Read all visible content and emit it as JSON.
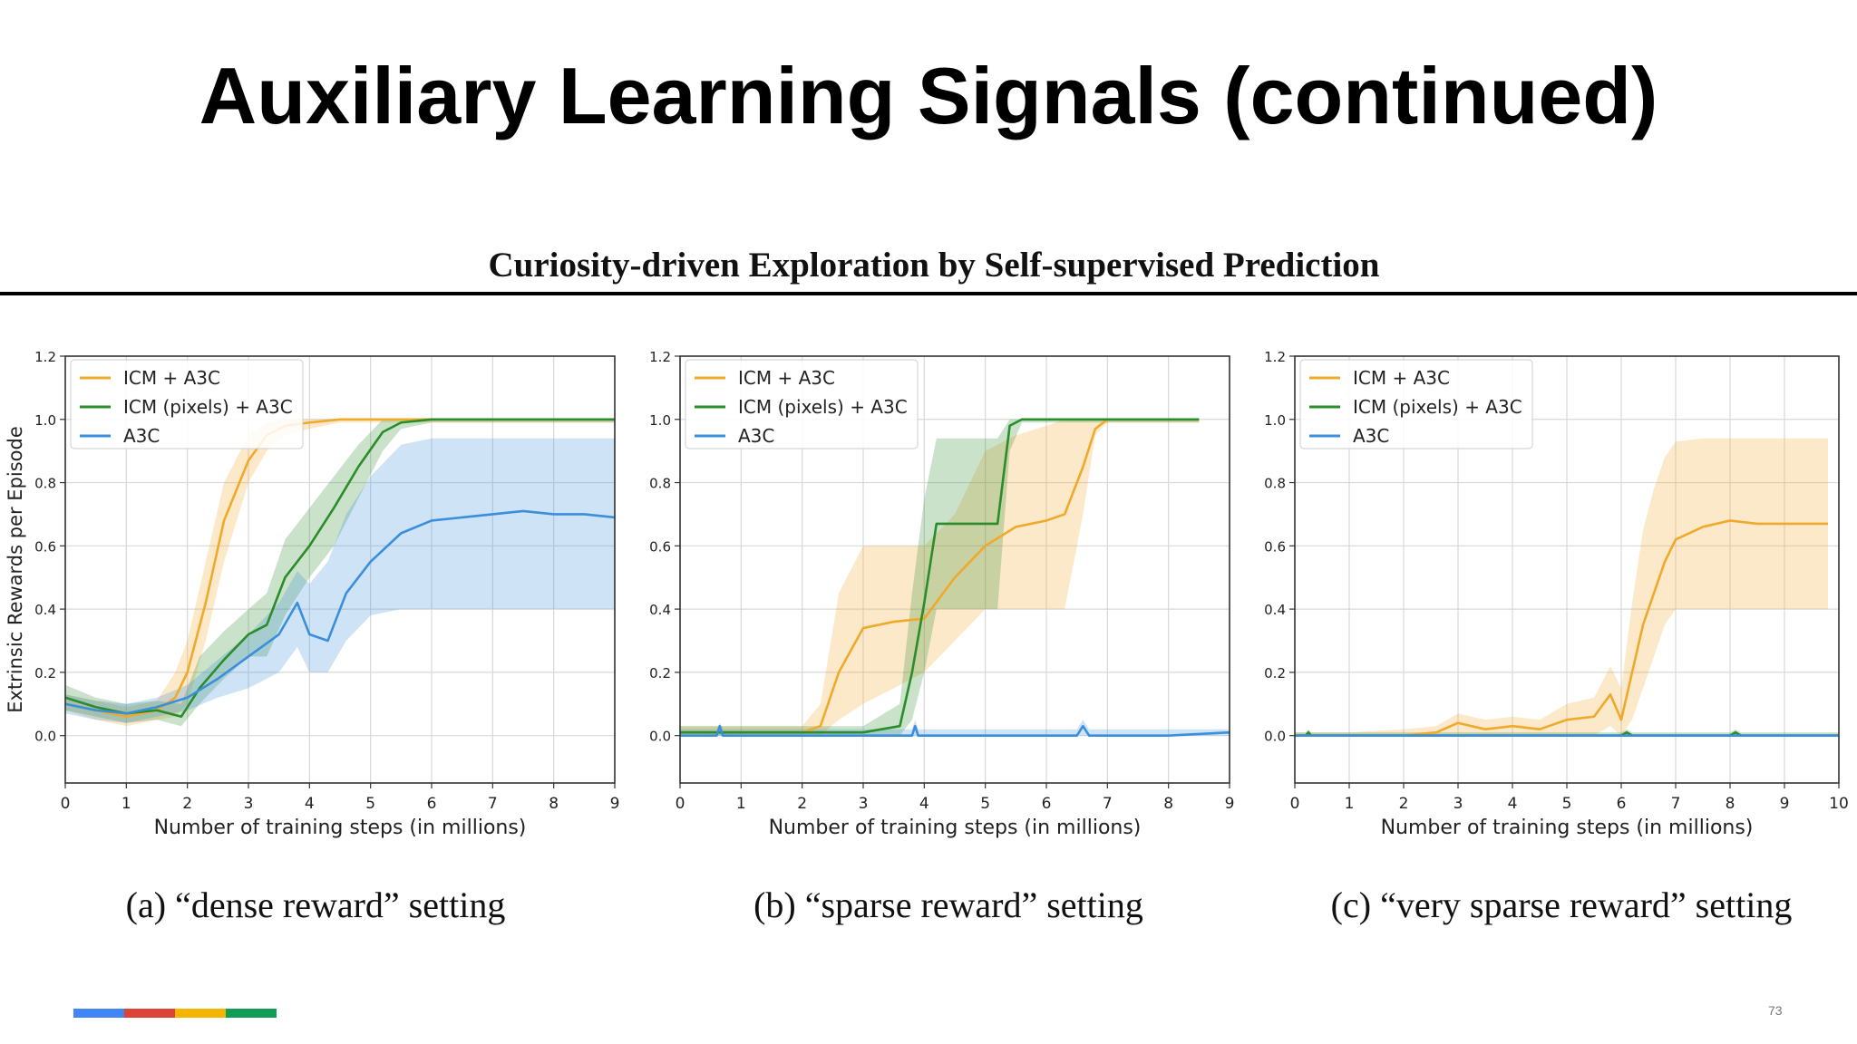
{
  "slide": {
    "title": "Auxiliary Learning Signals (continued)",
    "paper_title": "Curiosity-driven Exploration by Self-supervised Prediction",
    "page_number": "73",
    "brand_colors": [
      "#4285f4",
      "#db4437",
      "#f4b400",
      "#0f9d58"
    ]
  },
  "chart_data": [
    {
      "type": "line",
      "caption": "(a) “dense reward” setting",
      "xlabel": "Number of training steps (in millions)",
      "ylabel": "Extrinsic Rewards per Episode",
      "xlim": [
        0,
        9
      ],
      "ylim": [
        -0.15,
        1.2
      ],
      "xticks": [
        0,
        1,
        2,
        3,
        4,
        5,
        6,
        7,
        8,
        9
      ],
      "yticks": [
        "0.0",
        "0.2",
        "0.4",
        "0.6",
        "0.8",
        "1.0",
        "1.2"
      ],
      "grid": true,
      "legend": "top-left",
      "series": [
        {
          "name": "ICM + A3C",
          "color": "#f0a92b",
          "x": [
            0,
            0.5,
            1,
            1.5,
            1.8,
            2,
            2.3,
            2.6,
            3,
            3.3,
            3.6,
            4,
            4.5,
            5,
            6,
            7,
            8,
            9
          ],
          "y": [
            0.1,
            0.08,
            0.06,
            0.08,
            0.12,
            0.2,
            0.42,
            0.68,
            0.87,
            0.95,
            0.98,
            0.99,
            1.0,
            1.0,
            1.0,
            1.0,
            1.0,
            1.0
          ],
          "band": [
            [
              0.08,
              0.13
            ],
            [
              0.05,
              0.11
            ],
            [
              0.03,
              0.09
            ],
            [
              0.05,
              0.11
            ],
            [
              0.06,
              0.2
            ],
            [
              0.1,
              0.3
            ],
            [
              0.3,
              0.55
            ],
            [
              0.55,
              0.8
            ],
            [
              0.8,
              0.95
            ],
            [
              0.9,
              0.99
            ],
            [
              0.95,
              1.0
            ],
            [
              0.97,
              1.0
            ],
            [
              0.99,
              1.0
            ],
            [
              0.99,
              1.0
            ],
            [
              0.99,
              1.0
            ],
            [
              0.99,
              1.0
            ],
            [
              0.99,
              1.0
            ],
            [
              0.99,
              1.0
            ]
          ]
        },
        {
          "name": "ICM (pixels) + A3C",
          "color": "#2a8c2a",
          "x": [
            0,
            0.5,
            1,
            1.5,
            1.9,
            2.2,
            2.6,
            3,
            3.3,
            3.6,
            4,
            4.4,
            4.8,
            5.2,
            5.5,
            6,
            7,
            8,
            9
          ],
          "y": [
            0.12,
            0.09,
            0.07,
            0.08,
            0.06,
            0.15,
            0.24,
            0.32,
            0.35,
            0.5,
            0.6,
            0.72,
            0.85,
            0.96,
            0.99,
            1.0,
            1.0,
            1.0,
            1.0
          ],
          "band": [
            [
              0.08,
              0.16
            ],
            [
              0.06,
              0.12
            ],
            [
              0.04,
              0.1
            ],
            [
              0.05,
              0.11
            ],
            [
              0.03,
              0.1
            ],
            [
              0.1,
              0.25
            ],
            [
              0.18,
              0.33
            ],
            [
              0.25,
              0.4
            ],
            [
              0.25,
              0.45
            ],
            [
              0.38,
              0.62
            ],
            [
              0.5,
              0.72
            ],
            [
              0.6,
              0.82
            ],
            [
              0.75,
              0.92
            ],
            [
              0.9,
              1.0
            ],
            [
              0.97,
              1.0
            ],
            [
              0.99,
              1.0
            ],
            [
              0.99,
              1.0
            ],
            [
              0.99,
              1.0
            ],
            [
              0.99,
              1.0
            ]
          ]
        },
        {
          "name": "A3C",
          "color": "#3a8fdc",
          "x": [
            0,
            0.5,
            1,
            1.5,
            2,
            2.5,
            3,
            3.5,
            3.8,
            4,
            4.3,
            4.6,
            5,
            5.5,
            6,
            6.5,
            7,
            7.5,
            8,
            8.5,
            9
          ],
          "y": [
            0.1,
            0.08,
            0.07,
            0.09,
            0.12,
            0.18,
            0.25,
            0.32,
            0.42,
            0.32,
            0.3,
            0.45,
            0.55,
            0.64,
            0.68,
            0.69,
            0.7,
            0.71,
            0.7,
            0.7,
            0.69
          ],
          "band": [
            [
              0.07,
              0.13
            ],
            [
              0.05,
              0.11
            ],
            [
              0.04,
              0.1
            ],
            [
              0.06,
              0.12
            ],
            [
              0.08,
              0.16
            ],
            [
              0.12,
              0.24
            ],
            [
              0.15,
              0.32
            ],
            [
              0.2,
              0.42
            ],
            [
              0.28,
              0.52
            ],
            [
              0.2,
              0.48
            ],
            [
              0.2,
              0.55
            ],
            [
              0.3,
              0.7
            ],
            [
              0.38,
              0.82
            ],
            [
              0.4,
              0.92
            ],
            [
              0.4,
              0.94
            ],
            [
              0.4,
              0.94
            ],
            [
              0.4,
              0.94
            ],
            [
              0.4,
              0.94
            ],
            [
              0.4,
              0.94
            ],
            [
              0.4,
              0.94
            ],
            [
              0.4,
              0.94
            ]
          ]
        }
      ]
    },
    {
      "type": "line",
      "caption": "(b) “sparse reward” setting",
      "xlabel": "Number of training steps (in millions)",
      "ylabel": "",
      "xlim": [
        0,
        9
      ],
      "ylim": [
        -0.15,
        1.2
      ],
      "xticks": [
        0,
        1,
        2,
        3,
        4,
        5,
        6,
        7,
        8,
        9
      ],
      "yticks": [
        "0.0",
        "0.2",
        "0.4",
        "0.6",
        "0.8",
        "1.0",
        "1.2"
      ],
      "grid": true,
      "legend": "top-left",
      "series": [
        {
          "name": "ICM + A3C",
          "color": "#f0a92b",
          "x": [
            0,
            1,
            2,
            2.3,
            2.6,
            3,
            3.5,
            4,
            4.5,
            5,
            5.5,
            6,
            6.3,
            6.6,
            6.8,
            7,
            8,
            8.5
          ],
          "y": [
            0.01,
            0.01,
            0.01,
            0.03,
            0.2,
            0.34,
            0.36,
            0.37,
            0.5,
            0.6,
            0.66,
            0.68,
            0.7,
            0.85,
            0.97,
            1.0,
            1.0,
            1.0
          ],
          "band": [
            [
              0.0,
              0.03
            ],
            [
              0.0,
              0.03
            ],
            [
              0.0,
              0.03
            ],
            [
              0.0,
              0.1
            ],
            [
              0.05,
              0.45
            ],
            [
              0.1,
              0.6
            ],
            [
              0.15,
              0.6
            ],
            [
              0.2,
              0.6
            ],
            [
              0.3,
              0.7
            ],
            [
              0.4,
              0.9
            ],
            [
              0.4,
              0.95
            ],
            [
              0.4,
              0.98
            ],
            [
              0.4,
              1.0
            ],
            [
              0.7,
              1.0
            ],
            [
              0.95,
              1.0
            ],
            [
              0.99,
              1.0
            ],
            [
              0.99,
              1.0
            ],
            [
              0.99,
              1.0
            ]
          ]
        },
        {
          "name": "ICM (pixels) + A3C",
          "color": "#2a8c2a",
          "x": [
            0,
            1,
            2,
            3,
            3.6,
            3.8,
            4,
            4.2,
            4.5,
            5,
            5.2,
            5.4,
            5.6,
            6,
            7,
            8,
            8.5
          ],
          "y": [
            0.01,
            0.01,
            0.01,
            0.01,
            0.03,
            0.2,
            0.42,
            0.67,
            0.67,
            0.67,
            0.67,
            0.98,
            1.0,
            1.0,
            1.0,
            1.0,
            1.0
          ],
          "band": [
            [
              0.0,
              0.03
            ],
            [
              0.0,
              0.03
            ],
            [
              0.0,
              0.03
            ],
            [
              0.0,
              0.03
            ],
            [
              0.0,
              0.1
            ],
            [
              0.05,
              0.45
            ],
            [
              0.2,
              0.75
            ],
            [
              0.4,
              0.94
            ],
            [
              0.4,
              0.94
            ],
            [
              0.4,
              0.94
            ],
            [
              0.4,
              0.94
            ],
            [
              0.9,
              1.0
            ],
            [
              0.99,
              1.0
            ],
            [
              0.99,
              1.0
            ],
            [
              0.99,
              1.0
            ],
            [
              0.99,
              1.0
            ],
            [
              0.99,
              1.0
            ]
          ]
        },
        {
          "name": "A3C",
          "color": "#3a8fdc",
          "x": [
            0,
            0.6,
            0.65,
            0.7,
            1,
            2,
            3,
            3.8,
            3.85,
            3.9,
            4.5,
            5.5,
            6.5,
            6.6,
            6.7,
            7,
            8,
            9
          ],
          "y": [
            0.0,
            0.0,
            0.03,
            0.0,
            0.0,
            0.0,
            0.0,
            0.0,
            0.03,
            0.0,
            0.0,
            0.0,
            0.0,
            0.03,
            0.0,
            0.0,
            0.0,
            0.01
          ],
          "band": [
            [
              0.0,
              0.02
            ],
            [
              0.0,
              0.02
            ],
            [
              0.0,
              0.04
            ],
            [
              0.0,
              0.02
            ],
            [
              0.0,
              0.02
            ],
            [
              0.0,
              0.02
            ],
            [
              0.0,
              0.02
            ],
            [
              0.0,
              0.02
            ],
            [
              0.0,
              0.05
            ],
            [
              0.0,
              0.02
            ],
            [
              0.0,
              0.02
            ],
            [
              0.0,
              0.02
            ],
            [
              0.0,
              0.02
            ],
            [
              0.0,
              0.05
            ],
            [
              0.0,
              0.02
            ],
            [
              0.0,
              0.02
            ],
            [
              0.0,
              0.02
            ],
            [
              0.0,
              0.02
            ]
          ]
        }
      ]
    },
    {
      "type": "line",
      "caption": "(c) “very sparse reward” setting",
      "xlabel": "Number of training steps (in millions)",
      "ylabel": "",
      "xlim": [
        0,
        10
      ],
      "ylim": [
        -0.15,
        1.2
      ],
      "xticks": [
        0,
        1,
        2,
        3,
        4,
        5,
        6,
        7,
        8,
        9,
        10
      ],
      "yticks": [
        "0.0",
        "0.2",
        "0.4",
        "0.6",
        "0.8",
        "1.0",
        "1.2"
      ],
      "grid": true,
      "legend": "top-left",
      "series": [
        {
          "name": "ICM + A3C",
          "color": "#f0a92b",
          "x": [
            0,
            1,
            2,
            2.6,
            3,
            3.5,
            4,
            4.5,
            5,
            5.5,
            5.8,
            6,
            6.2,
            6.4,
            6.6,
            6.8,
            7,
            7.5,
            8,
            8.5,
            9,
            9.5,
            9.8
          ],
          "y": [
            0.0,
            0.0,
            0.0,
            0.01,
            0.04,
            0.02,
            0.03,
            0.02,
            0.05,
            0.06,
            0.13,
            0.05,
            0.2,
            0.35,
            0.45,
            0.55,
            0.62,
            0.66,
            0.68,
            0.67,
            0.67,
            0.67,
            0.67
          ],
          "band": [
            [
              0.0,
              0.01
            ],
            [
              0.0,
              0.01
            ],
            [
              0.0,
              0.02
            ],
            [
              0.0,
              0.03
            ],
            [
              0.0,
              0.07
            ],
            [
              0.0,
              0.05
            ],
            [
              0.0,
              0.06
            ],
            [
              0.0,
              0.05
            ],
            [
              0.0,
              0.1
            ],
            [
              0.0,
              0.12
            ],
            [
              0.03,
              0.22
            ],
            [
              0.0,
              0.15
            ],
            [
              0.05,
              0.42
            ],
            [
              0.15,
              0.65
            ],
            [
              0.25,
              0.78
            ],
            [
              0.35,
              0.88
            ],
            [
              0.4,
              0.93
            ],
            [
              0.4,
              0.94
            ],
            [
              0.4,
              0.94
            ],
            [
              0.4,
              0.94
            ],
            [
              0.4,
              0.94
            ],
            [
              0.4,
              0.94
            ],
            [
              0.4,
              0.94
            ]
          ]
        },
        {
          "name": "ICM (pixels) + A3C",
          "color": "#2a8c2a",
          "x": [
            0,
            0.2,
            0.25,
            0.3,
            2,
            6,
            6.1,
            6.2,
            8,
            8.1,
            8.2,
            10
          ],
          "y": [
            0.0,
            0.0,
            0.01,
            0.0,
            0.0,
            0.0,
            0.01,
            0.0,
            0.0,
            0.01,
            0.0,
            0.0
          ],
          "band": [
            [
              0.0,
              0.01
            ],
            [
              0.0,
              0.01
            ],
            [
              0.0,
              0.02
            ],
            [
              0.0,
              0.01
            ],
            [
              0.0,
              0.01
            ],
            [
              0.0,
              0.01
            ],
            [
              0.0,
              0.02
            ],
            [
              0.0,
              0.01
            ],
            [
              0.0,
              0.01
            ],
            [
              0.0,
              0.02
            ],
            [
              0.0,
              0.01
            ],
            [
              0.0,
              0.01
            ]
          ]
        },
        {
          "name": "A3C",
          "color": "#3a8fdc",
          "x": [
            0,
            2,
            4,
            6,
            8,
            10
          ],
          "y": [
            0.0,
            0.0,
            0.0,
            0.0,
            0.0,
            0.0
          ],
          "band": [
            [
              0.0,
              0.005
            ],
            [
              0.0,
              0.005
            ],
            [
              0.0,
              0.005
            ],
            [
              0.0,
              0.005
            ],
            [
              0.0,
              0.005
            ],
            [
              0.0,
              0.005
            ]
          ]
        }
      ]
    }
  ]
}
